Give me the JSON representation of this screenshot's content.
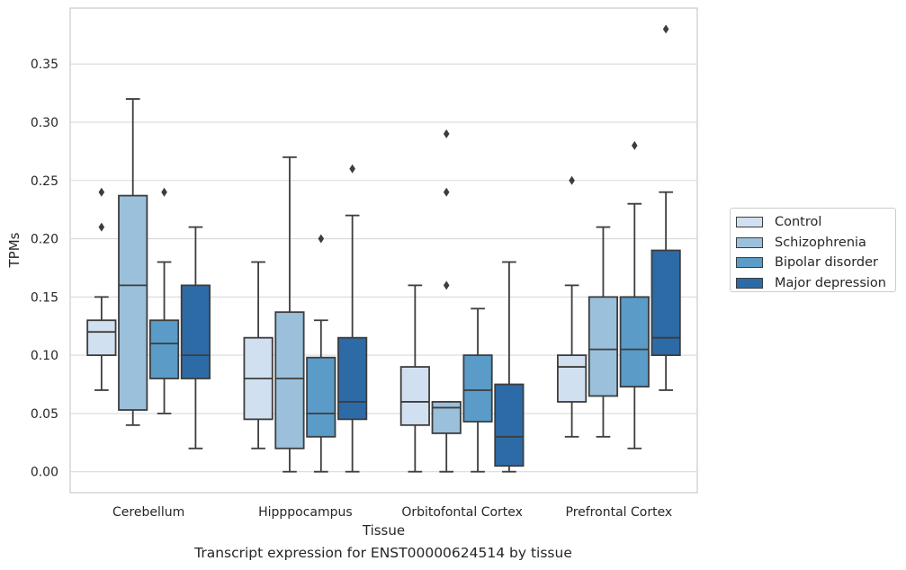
{
  "chart_data": {
    "type": "boxplot",
    "title": "",
    "caption": "Transcript expression for ENST00000624514 by tissue",
    "xlabel": "Tissue",
    "ylabel": "TPMs",
    "ylim": [
      -0.018,
      0.398
    ],
    "yticks": [
      0.0,
      0.05,
      0.1,
      0.15,
      0.2,
      0.25,
      0.3,
      0.35
    ],
    "ytick_labels": [
      "0.00",
      "0.05",
      "0.10",
      "0.15",
      "0.20",
      "0.25",
      "0.30",
      "0.35"
    ],
    "grid": "horizontal",
    "legend_position": "right",
    "categories": [
      "Cerebellum",
      "Hipppocampus",
      "Orbitofontal Cortex",
      "Prefrontal Cortex"
    ],
    "series": [
      {
        "name": "Control",
        "color": "#d1e0f0",
        "boxes": [
          {
            "whisker_low": 0.07,
            "q1": 0.1,
            "median": 0.12,
            "q3": 0.13,
            "whisker_high": 0.15,
            "outliers": [
              0.21,
              0.24
            ]
          },
          {
            "whisker_low": 0.02,
            "q1": 0.045,
            "median": 0.08,
            "q3": 0.115,
            "whisker_high": 0.18,
            "outliers": []
          },
          {
            "whisker_low": 0.0,
            "q1": 0.04,
            "median": 0.06,
            "q3": 0.09,
            "whisker_high": 0.16,
            "outliers": []
          },
          {
            "whisker_low": 0.03,
            "q1": 0.06,
            "median": 0.09,
            "q3": 0.1,
            "whisker_high": 0.16,
            "outliers": [
              0.25
            ]
          }
        ]
      },
      {
        "name": "Schizophrenia",
        "color": "#9ac0db",
        "boxes": [
          {
            "whisker_low": 0.04,
            "q1": 0.053,
            "median": 0.16,
            "q3": 0.237,
            "whisker_high": 0.32,
            "outliers": []
          },
          {
            "whisker_low": 0.0,
            "q1": 0.02,
            "median": 0.08,
            "q3": 0.137,
            "whisker_high": 0.27,
            "outliers": []
          },
          {
            "whisker_low": 0.0,
            "q1": 0.033,
            "median": 0.055,
            "q3": 0.06,
            "whisker_high": 0.06,
            "outliers": [
              0.16,
              0.24,
              0.29
            ]
          },
          {
            "whisker_low": 0.03,
            "q1": 0.065,
            "median": 0.105,
            "q3": 0.15,
            "whisker_high": 0.21,
            "outliers": []
          }
        ]
      },
      {
        "name": "Bipolar disorder",
        "color": "#5a9bc7",
        "boxes": [
          {
            "whisker_low": 0.05,
            "q1": 0.08,
            "median": 0.11,
            "q3": 0.13,
            "whisker_high": 0.18,
            "outliers": [
              0.24
            ]
          },
          {
            "whisker_low": 0.0,
            "q1": 0.03,
            "median": 0.05,
            "q3": 0.098,
            "whisker_high": 0.13,
            "outliers": [
              0.2
            ]
          },
          {
            "whisker_low": 0.0,
            "q1": 0.043,
            "median": 0.07,
            "q3": 0.1,
            "whisker_high": 0.14,
            "outliers": []
          },
          {
            "whisker_low": 0.02,
            "q1": 0.073,
            "median": 0.105,
            "q3": 0.15,
            "whisker_high": 0.23,
            "outliers": [
              0.28
            ]
          }
        ]
      },
      {
        "name": "Major depression",
        "color": "#2d6ba6",
        "boxes": [
          {
            "whisker_low": 0.02,
            "q1": 0.08,
            "median": 0.1,
            "q3": 0.16,
            "whisker_high": 0.21,
            "outliers": []
          },
          {
            "whisker_low": 0.0,
            "q1": 0.045,
            "median": 0.06,
            "q3": 0.115,
            "whisker_high": 0.22,
            "outliers": [
              0.26
            ]
          },
          {
            "whisker_low": 0.0,
            "q1": 0.005,
            "median": 0.03,
            "q3": 0.075,
            "whisker_high": 0.18,
            "outliers": []
          },
          {
            "whisker_low": 0.07,
            "q1": 0.1,
            "median": 0.115,
            "q3": 0.19,
            "whisker_high": 0.24,
            "outliers": [
              0.38
            ]
          }
        ]
      }
    ]
  }
}
